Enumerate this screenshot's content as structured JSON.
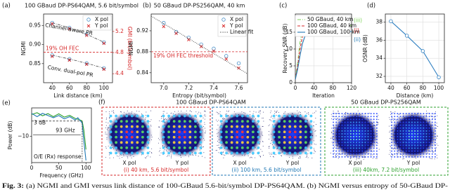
{
  "chart_data": [
    {
      "type": "scatter",
      "label": "(a)",
      "title": "100 GBaud DP-PS64QAM, 5.6 bit/symbol",
      "xlabel": "Link distance (km)",
      "ylabel": "NGMI",
      "y2label": "GMI (bit/symbol)",
      "x": [
        40,
        60,
        80,
        100,
        40,
        60,
        80,
        100
      ],
      "series": [
        {
          "name": "X pol",
          "color": "#4a90c8",
          "marker": "circle",
          "values": [
            0.957,
            0.944,
            0.927,
            0.906,
            0.872,
            0.862,
            0.851,
            0.838
          ]
        },
        {
          "name": "Y pol",
          "color": "#d62728",
          "marker": "cross",
          "values": [
            0.954,
            0.941,
            0.924,
            0.903,
            0.869,
            0.859,
            0.848,
            0.835
          ]
        }
      ],
      "xlim": [
        30,
        110
      ],
      "xticks": [
        40,
        60,
        80,
        100
      ],
      "ylim": [
        0.8,
        0.98
      ],
      "yticks": [
        0.85,
        {
          "value": 0.9,
          "label": "0.90"
        },
        0.95
      ],
      "y2lim": [
        4.23,
        5.53
      ],
      "y2ticks": [
        4.4,
        4.8,
        5.2
      ],
      "y2color": "#d62728",
      "threshold": 0.88,
      "threshold_label": "19% OH FEC",
      "annotations": [
        "Channel-aware PR",
        "Conv. dual-pol PR"
      ],
      "legend": "upper right"
    },
    {
      "type": "scatter",
      "label": "(b)",
      "title": "50 GBaud DP-PS256QAM, 40 km",
      "xlabel": "Entropy (bit/symbol)",
      "ylabel": "NGMI",
      "x": [
        7.0,
        7.1,
        7.2,
        7.3,
        7.4,
        7.5,
        7.6
      ],
      "series": [
        {
          "name": "X pol",
          "color": "#4a90c8",
          "marker": "circle",
          "values": [
            0.935,
            0.918,
            0.907,
            0.894,
            0.886,
            0.872,
            0.858
          ]
        },
        {
          "name": "Y pol",
          "color": "#d62728",
          "marker": "cross",
          "values": [
            0.928,
            0.915,
            0.903,
            0.89,
            0.881,
            0.866,
            0.849
          ]
        },
        {
          "name": "Linear fit",
          "color": "#333333",
          "marker": "line",
          "style": "dotted",
          "x": [
            6.9,
            7.67
          ],
          "values": [
            0.948,
            0.838
          ]
        }
      ],
      "xlim": [
        6.9,
        7.67
      ],
      "xticks": [
        {
          "value": 7,
          "label": "7.0"
        },
        7.2,
        7.4,
        7.6
      ],
      "ylim": [
        0.821,
        0.952
      ],
      "yticks": [
        0.84,
        0.88,
        0.92
      ],
      "threshold": 0.88,
      "threshold_label": "19% OH FEC threshold",
      "legend": "upper right"
    },
    {
      "type": "line",
      "label": "(c)",
      "xlabel": "Iteration",
      "ylabel": "Recovery SNR (dB)",
      "x": [
        0,
        5,
        10,
        15,
        20,
        25,
        30,
        40,
        60,
        80,
        100,
        120
      ],
      "series": [
        {
          "name": "50 GBaud, 40 km",
          "color": "#7fd35a",
          "style": "dashdot",
          "end_label": "(iii)",
          "values": [
            1,
            6,
            12,
            15.5,
            16.6,
            16.9,
            17,
            17,
            17,
            17,
            17,
            17
          ]
        },
        {
          "name": "100 GBaud, 40 km",
          "color": "#d62728",
          "style": "dashed",
          "end_label": "(i)",
          "values": [
            1,
            5,
            10,
            13.5,
            15.2,
            15.8,
            16,
            16,
            16,
            16,
            16,
            16
          ]
        },
        {
          "name": "100 GBaud, 100 km",
          "color": "#1f77b4",
          "style": "solid",
          "end_label": "(ii)",
          "values": [
            1,
            4,
            8,
            11.5,
            13.6,
            14.6,
            15,
            15.2,
            15.2,
            15.2,
            15.2,
            15.2
          ]
        }
      ],
      "xlim": [
        0,
        120
      ],
      "xticks": [
        0,
        40,
        80,
        120
      ],
      "ylim": [
        0,
        20.4
      ],
      "yticks": [
        0,
        5,
        10,
        15
      ],
      "grid": true,
      "legend": "upper right"
    },
    {
      "type": "line",
      "label": "(d)",
      "xlabel": "Distance (km)",
      "ylabel": "OSNR (dB)",
      "x": [
        40,
        60,
        80,
        100
      ],
      "series": [
        {
          "color": "#2f7fc1",
          "style": "solid",
          "marker": "circle",
          "values": [
            38.1,
            36.5,
            34.8,
            31.9
          ]
        }
      ],
      "xlim": [
        33,
        107
      ],
      "xticks": [
        40,
        60,
        80,
        100
      ],
      "ylim": [
        31.3,
        38.9
      ],
      "yticks": [
        32,
        34,
        36,
        38
      ],
      "grid": true
    },
    {
      "type": "line",
      "label": "(e)",
      "xlabel": "Frequency (GHz)",
      "ylabel": "Power (dB)",
      "x": [
        0,
        10,
        20,
        30,
        40,
        50,
        60,
        70,
        80,
        85,
        90,
        93,
        96,
        100
      ],
      "series": [
        {
          "color": "#2ca02c",
          "style": "solid",
          "values": [
            0,
            0.8,
            -0.6,
            0.4,
            -1,
            0.3,
            -1.2,
            -0.4,
            -1.8,
            -2.2,
            -2.6,
            -3,
            -7,
            -16
          ]
        },
        {
          "color": "#1f77b4",
          "style": "solid",
          "values": [
            0.5,
            -1,
            0.5,
            -0.5,
            -1.5,
            -0.5,
            -2,
            -1,
            -2.5,
            -1.5,
            -3,
            -4,
            -12,
            -21
          ]
        }
      ],
      "xlim": [
        0,
        110
      ],
      "xticks": [
        0,
        50,
        100
      ],
      "ylim": [
        -22,
        3
      ],
      "yticks": [
        {
          "value": -10,
          "label": "−10"
        }
      ],
      "threshold": -3,
      "cutoff": 93,
      "cutoff_label": "93 GHz",
      "annotations": [
        "3 dB",
        "O/E (Rx) response"
      ]
    }
  ],
  "figure_f": {
    "label": "(f)",
    "pol_labels": [
      "X pol",
      "Y pol"
    ],
    "groups": [
      {
        "title": "100 GBaud DP-PS64QAM",
        "caption": "(i) 40 km, 5.6 bit/symbol"
      },
      {
        "caption": "(ii) 100 km, 5.6 bit/symbol"
      },
      {
        "title": "50 GBaud DP-PS256QAM",
        "caption": "(iii) 40km, 7.2 bit/symbol"
      }
    ]
  },
  "caption": {
    "label": "Fig. 3:",
    "text": "(a) NGMI and GMI versus link distance of 100-GBaud 5.6-bit/symbol DP-PS64QAM. (b) NGMI versus entropy of 50-GBaud DP-"
  }
}
